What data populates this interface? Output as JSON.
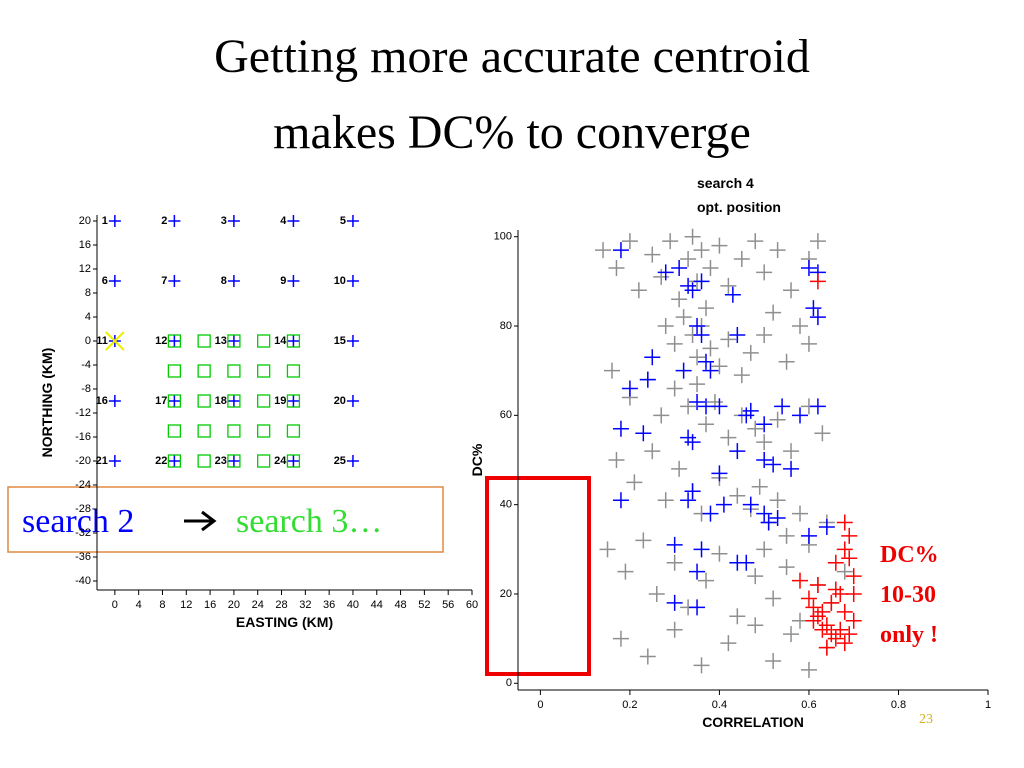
{
  "title": [
    "Getting more accurate centroid",
    "makes DC% to converge"
  ],
  "callout": {
    "from": "search 2",
    "to": "search 3…"
  },
  "annotation": [
    "DC%",
    "10-30",
    "only !"
  ],
  "slide_number": "23",
  "chart_data": [
    {
      "type": "scatter",
      "xlabel": "EASTING (KM)",
      "ylabel": "NORTHING (KM)",
      "xlim": [
        -3,
        60
      ],
      "ylim": [
        -41.5,
        21
      ],
      "xticks": [
        0,
        4,
        8,
        12,
        16,
        20,
        24,
        28,
        32,
        36,
        40,
        44,
        48,
        52,
        56,
        60
      ],
      "yticks": [
        20,
        16,
        12,
        8,
        4,
        0,
        -4,
        -8,
        -12,
        -16,
        -20,
        -24,
        -28,
        -32,
        -36,
        -40
      ],
      "grid": false,
      "series": [
        {
          "color": "#0000ff",
          "label_color": "#ee0000",
          "marker": "plus",
          "x": [
            0,
            10,
            20,
            30,
            40,
            0,
            10,
            20,
            30,
            40,
            0,
            10,
            20,
            30,
            40,
            0,
            10,
            20,
            30,
            40,
            0,
            10,
            20,
            30,
            40
          ],
          "y": [
            20,
            20,
            20,
            20,
            20,
            10,
            10,
            10,
            10,
            10,
            0,
            0,
            0,
            0,
            0,
            -10,
            -10,
            -10,
            -10,
            -10,
            -20,
            -20,
            -20,
            -20,
            -20
          ],
          "labels": [
            "1",
            "2",
            "3",
            "4",
            "5",
            "6",
            "7",
            "8",
            "9",
            "10",
            "11",
            "12",
            "13",
            "14",
            "15",
            "16",
            "17",
            "18",
            "19",
            "20",
            "21",
            "22",
            "23",
            "24",
            "25"
          ]
        },
        {
          "color": "#00cc00",
          "marker": "square",
          "x": [
            10,
            15,
            20,
            25,
            30,
            10,
            15,
            20,
            25,
            30,
            10,
            15,
            20,
            25,
            30,
            10,
            15,
            20,
            25,
            30,
            10,
            15,
            20,
            25,
            30
          ],
          "y": [
            0,
            0,
            0,
            0,
            0,
            -5,
            -5,
            -5,
            -5,
            -5,
            -10,
            -10,
            -10,
            -10,
            -10,
            -15,
            -15,
            -15,
            -15,
            -15,
            -20,
            -20,
            -20,
            -20,
            -20
          ]
        },
        {
          "color": "#eeee00",
          "marker": "x",
          "x": [
            0
          ],
          "y": [
            0
          ]
        }
      ]
    },
    {
      "type": "scatter",
      "xlabel": "CORRELATION",
      "ylabel": "DC%",
      "xlim": [
        -0.05,
        1
      ],
      "ylim": [
        -1.5,
        101.5
      ],
      "xticks": [
        0,
        0.2,
        0.4,
        0.6,
        0.8,
        1
      ],
      "yticks": [
        0,
        20,
        40,
        60,
        80,
        100
      ],
      "grid": false,
      "legend": "top-right",
      "series": [
        {
          "name": "search 4",
          "color": "#333333",
          "marker": "plus",
          "x": [
            0.14,
            0.17,
            0.2,
            0.22,
            0.25,
            0.27,
            0.29,
            0.31,
            0.33,
            0.34,
            0.35,
            0.36,
            0.37,
            0.38,
            0.4,
            0.42,
            0.45,
            0.48,
            0.5,
            0.53,
            0.56,
            0.6,
            0.62,
            0.28,
            0.3,
            0.32,
            0.34,
            0.35,
            0.36,
            0.38,
            0.4,
            0.42,
            0.45,
            0.47,
            0.5,
            0.52,
            0.55,
            0.58,
            0.6,
            0.16,
            0.2,
            0.24,
            0.27,
            0.3,
            0.33,
            0.35,
            0.37,
            0.39,
            0.42,
            0.45,
            0.48,
            0.5,
            0.53,
            0.56,
            0.6,
            0.63,
            0.17,
            0.21,
            0.25,
            0.28,
            0.31,
            0.34,
            0.36,
            0.4,
            0.44,
            0.47,
            0.49,
            0.51,
            0.53,
            0.55,
            0.58,
            0.6,
            0.64,
            0.15,
            0.19,
            0.23,
            0.26,
            0.3,
            0.33,
            0.37,
            0.4,
            0.44,
            0.48,
            0.5,
            0.52,
            0.55,
            0.58,
            0.62,
            0.65,
            0.68,
            0.18,
            0.24,
            0.3,
            0.36,
            0.42,
            0.48,
            0.52,
            0.56,
            0.6,
            0.64
          ],
          "y": [
            97,
            93,
            99,
            88,
            96,
            91,
            99,
            86,
            95,
            100,
            90,
            97,
            84,
            93,
            98,
            89,
            95,
            99,
            92,
            97,
            88,
            95,
            99,
            80,
            76,
            82,
            78,
            73,
            80,
            75,
            71,
            77,
            69,
            74,
            78,
            83,
            72,
            80,
            76,
            70,
            64,
            68,
            60,
            66,
            62,
            67,
            58,
            63,
            55,
            60,
            57,
            54,
            59,
            52,
            62,
            56,
            50,
            45,
            52,
            41,
            48,
            43,
            38,
            46,
            42,
            39,
            44,
            36,
            41,
            33,
            38,
            31,
            36,
            30,
            25,
            32,
            20,
            27,
            17,
            23,
            29,
            15,
            24,
            30,
            19,
            26,
            14,
            22,
            18,
            25,
            10,
            6,
            12,
            4,
            9,
            13,
            5,
            11,
            3,
            8
          ]
        },
        {
          "name": "opt. position",
          "color": "#0000ff",
          "marker": "plus",
          "x": [
            0.18,
            0.28,
            0.31,
            0.33,
            0.34,
            0.36,
            0.43,
            0.6,
            0.62,
            0.61,
            0.62,
            0.35,
            0.36,
            0.44,
            0.25,
            0.24,
            0.32,
            0.37,
            0.38,
            0.2,
            0.35,
            0.37,
            0.4,
            0.46,
            0.47,
            0.5,
            0.54,
            0.58,
            0.62,
            0.18,
            0.23,
            0.33,
            0.34,
            0.44,
            0.5,
            0.52,
            0.56,
            0.4,
            0.34,
            0.33,
            0.38,
            0.5,
            0.51,
            0.53,
            0.18,
            0.41,
            0.3,
            0.36,
            0.44,
            0.35,
            0.3,
            0.35,
            0.46,
            0.47,
            0.6,
            0.64
          ],
          "y": [
            97,
            92,
            93,
            89,
            88,
            90,
            87,
            93,
            92,
            84,
            82,
            80,
            78,
            78,
            73,
            68,
            70,
            72,
            70,
            66,
            63,
            62,
            62,
            60,
            61,
            58,
            62,
            60,
            62,
            57,
            56,
            55,
            54,
            52,
            50,
            49,
            48,
            47,
            43,
            41,
            38,
            38,
            36,
            37,
            41,
            40,
            31,
            30,
            27,
            25,
            18,
            17,
            27,
            40,
            33,
            35
          ]
        },
        {
          "color": "#ff0000",
          "marker": "plus",
          "x": [
            0.62,
            0.68,
            0.69,
            0.68,
            0.66,
            0.69,
            0.58,
            0.7,
            0.66,
            0.7,
            0.6,
            0.61,
            0.62,
            0.63,
            0.65,
            0.67,
            0.68,
            0.61,
            0.64,
            0.63,
            0.65,
            0.66,
            0.68,
            0.69,
            0.64,
            0.67,
            0.7,
            0.62
          ],
          "y": [
            90,
            36,
            33,
            30,
            27,
            28,
            23,
            24,
            21,
            20,
            19,
            17,
            15,
            16,
            18,
            20,
            16,
            14,
            13,
            12,
            11,
            10,
            9,
            11,
            8,
            12,
            14,
            22
          ]
        }
      ]
    }
  ]
}
